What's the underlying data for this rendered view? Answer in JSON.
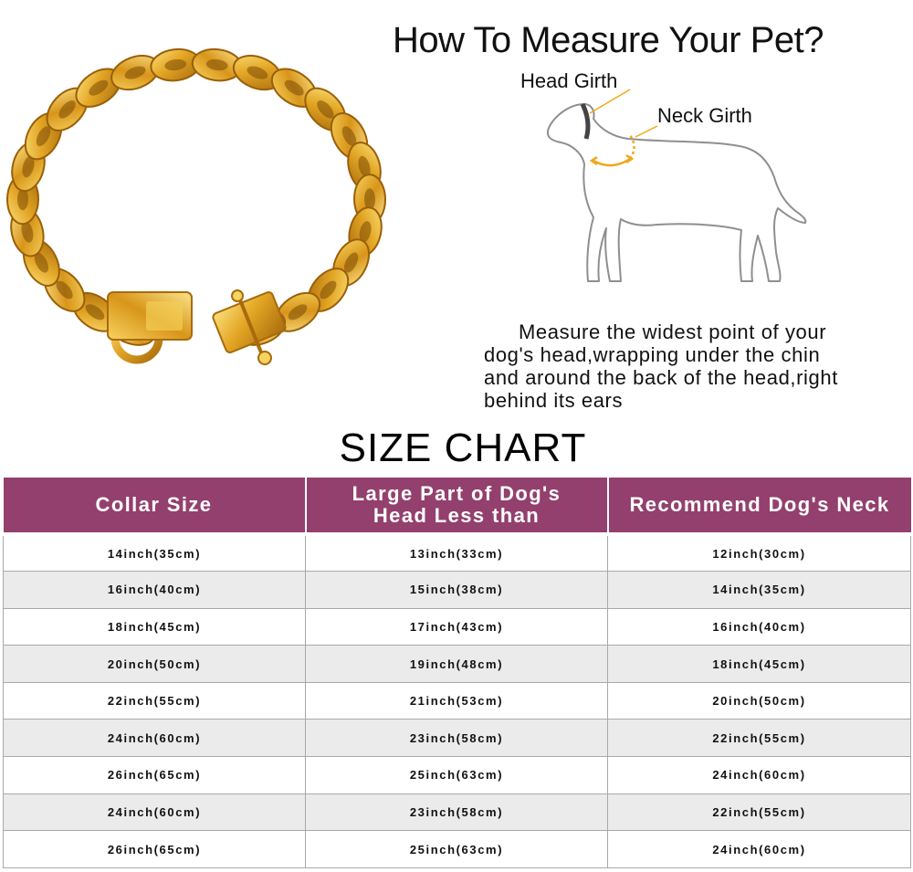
{
  "header": {
    "title": "How To Measure Your Pet?"
  },
  "diagram": {
    "head_girth_label": "Head Girth",
    "neck_girth_label": "Neck Girth",
    "colors": {
      "outline": "#8f8f8f",
      "arrow": "#f0a818"
    }
  },
  "instructions": {
    "line1": "Measure the widest point of your",
    "line2": "dog's head,wrapping under the chin",
    "line3": "and around the back of the head,right",
    "line4": "behind its ears"
  },
  "product": {
    "image": "gold-cuban-chain-collar",
    "color": "#d9a21f"
  },
  "size_chart": {
    "title": "SIZE  CHART",
    "header_color": "#93406e",
    "headers": {
      "collar": "Collar Size",
      "head_line1": "Large Part of Dog's",
      "head_line2": "Head Less than",
      "neck": "Recommend Dog's Neck"
    },
    "rows": [
      [
        "14inch(35cm)",
        "13inch(33cm)",
        "12inch(30cm)"
      ],
      [
        "16inch(40cm)",
        "15inch(38cm)",
        "14inch(35cm)"
      ],
      [
        "18inch(45cm)",
        "17inch(43cm)",
        "16inch(40cm)"
      ],
      [
        "20inch(50cm)",
        "19inch(48cm)",
        "18inch(45cm)"
      ],
      [
        "22inch(55cm)",
        "21inch(53cm)",
        "20inch(50cm)"
      ],
      [
        "24inch(60cm)",
        "23inch(58cm)",
        "22inch(55cm)"
      ],
      [
        "26inch(65cm)",
        "25inch(63cm)",
        "24inch(60cm)"
      ],
      [
        "24inch(60cm)",
        "23inch(58cm)",
        "22inch(55cm)"
      ],
      [
        "26inch(65cm)",
        "25inch(63cm)",
        "24inch(60cm)"
      ]
    ]
  }
}
